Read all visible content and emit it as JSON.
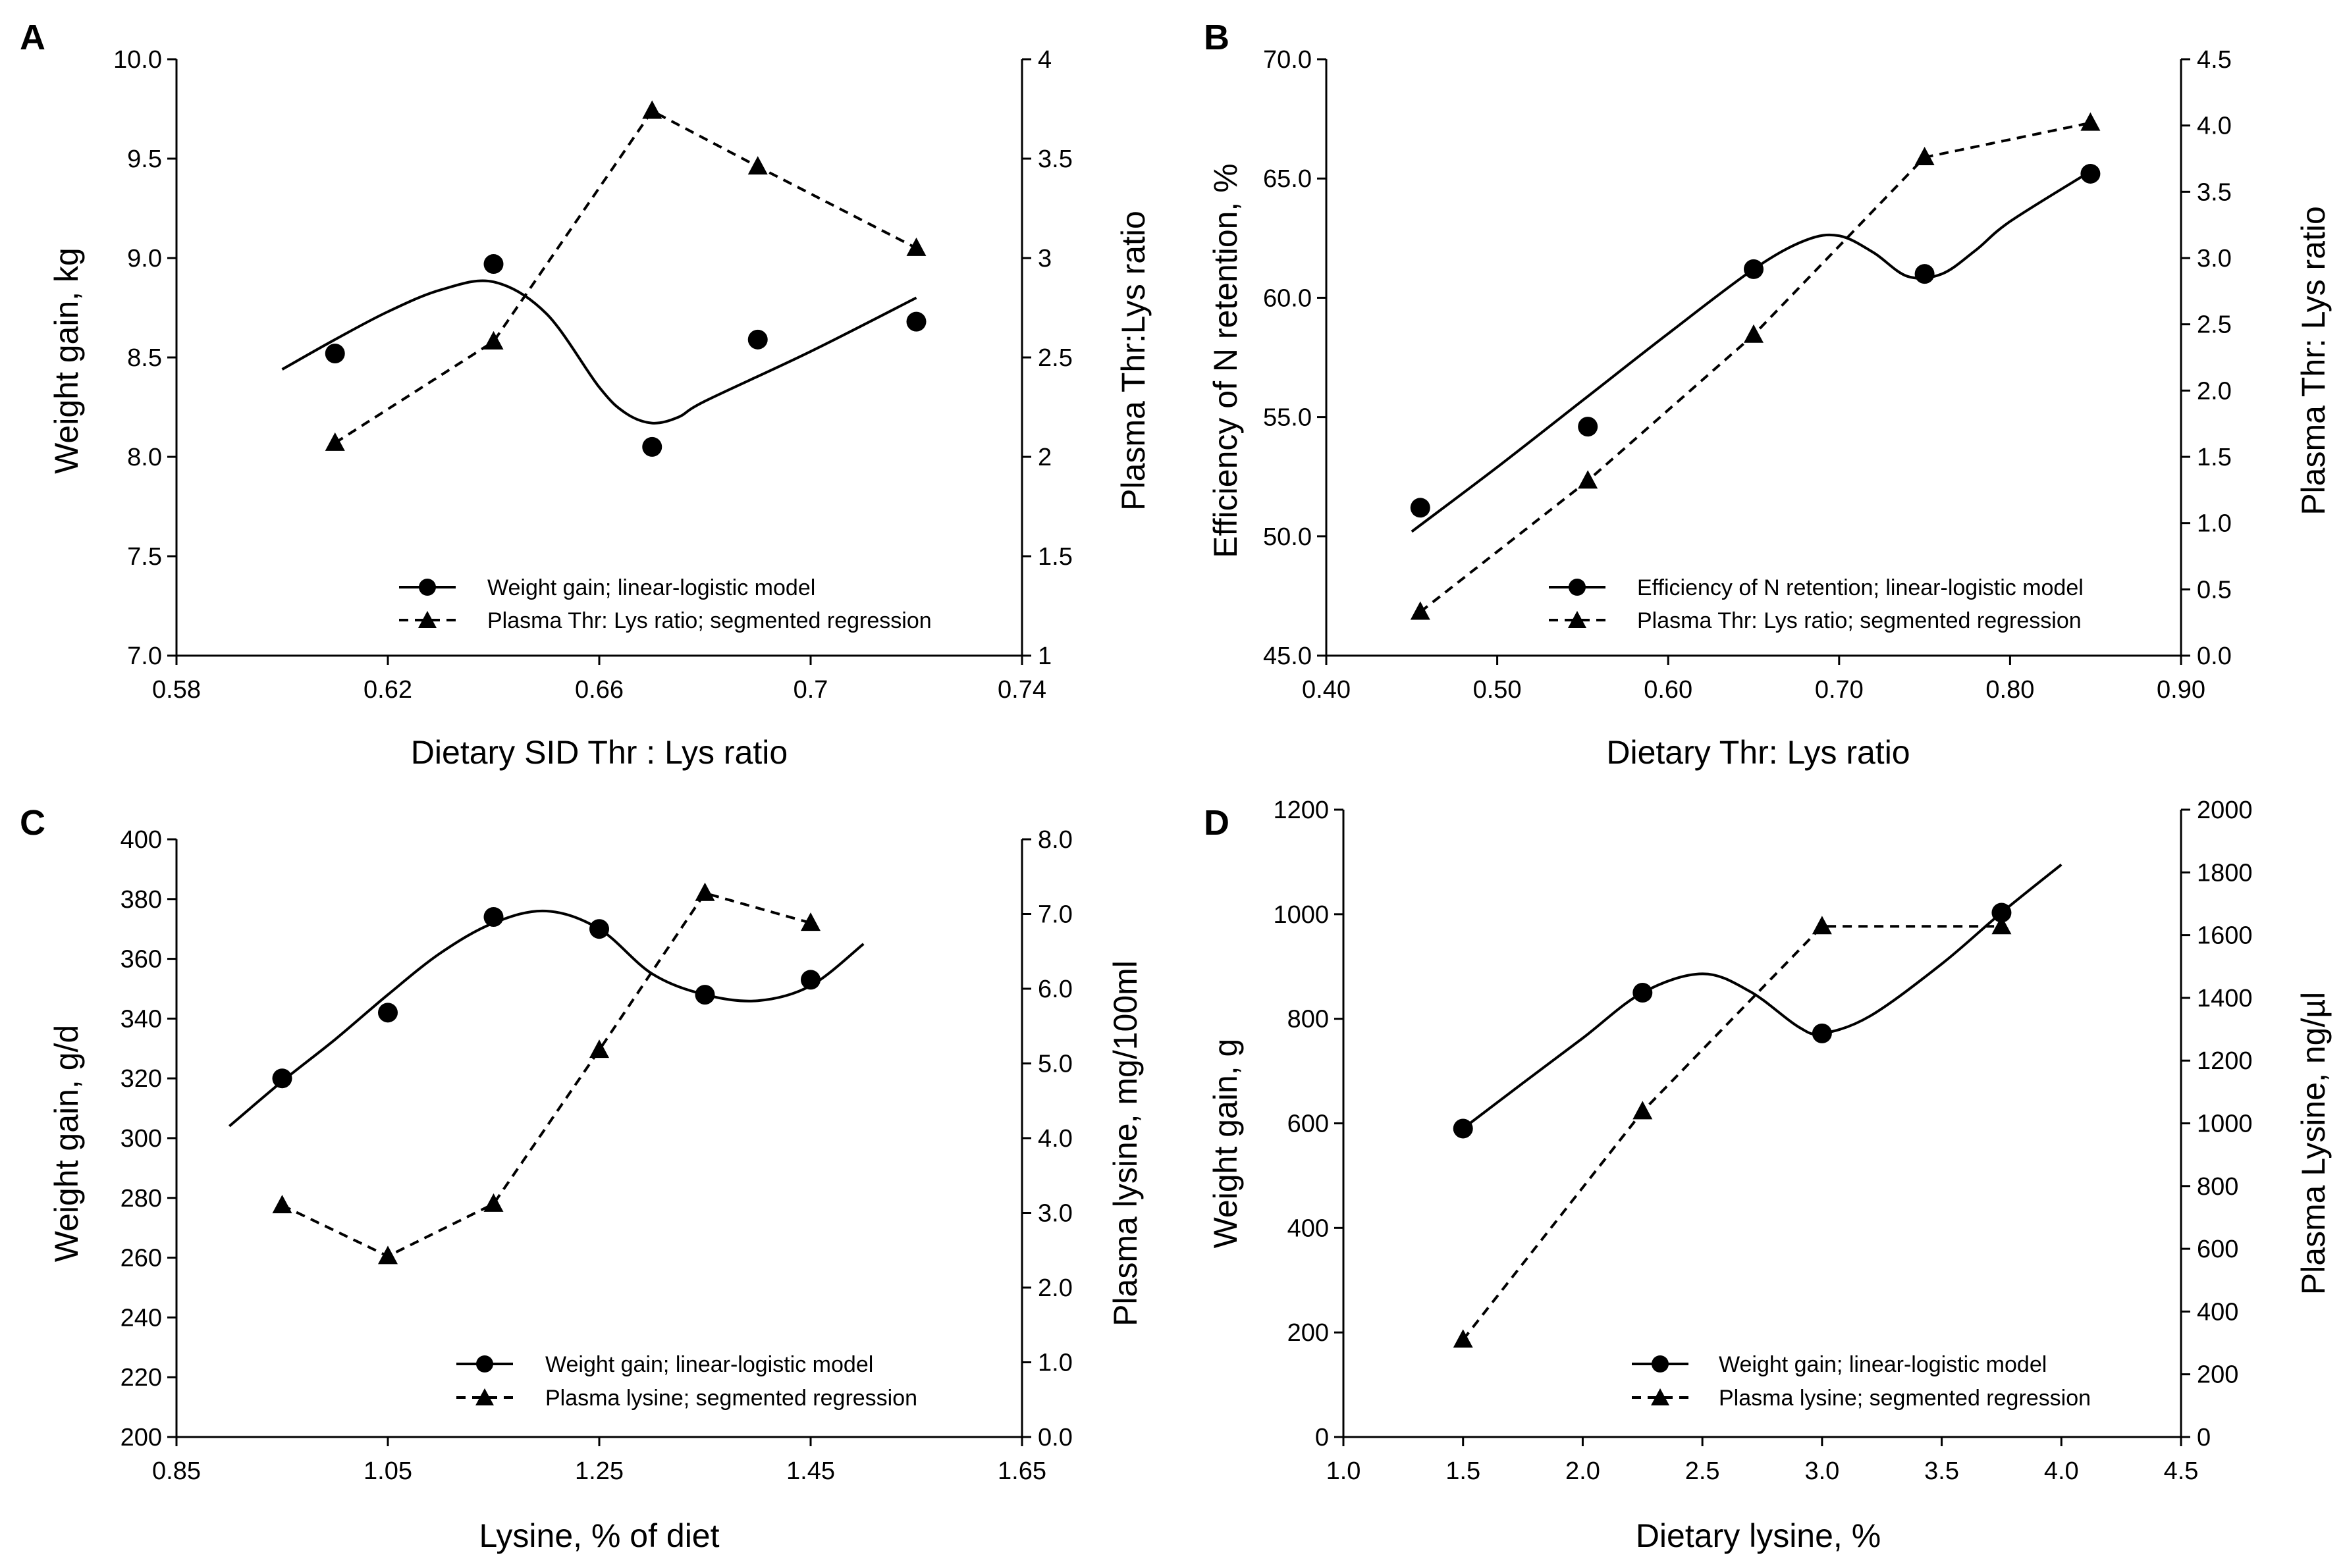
{
  "chart_data": [
    {
      "panel": "A",
      "type": "scatter",
      "x_axis": {
        "label": "Dietary SID Thr : Lys ratio",
        "range": [
          0.58,
          0.74
        ],
        "ticks": [
          "0.58",
          "0.62",
          "0.66",
          "0.7",
          "0.74"
        ]
      },
      "y_left": {
        "label": "Weight gain, kg",
        "range": [
          7.0,
          10.0
        ],
        "ticks": [
          "7.0",
          "7.5",
          "8.0",
          "8.5",
          "9.0",
          "9.5",
          "10.0"
        ]
      },
      "y_right": {
        "label": "Plasma Thr:Lys ratio",
        "range": [
          1,
          4
        ],
        "ticks": [
          "1",
          "1.5",
          "2",
          "2.5",
          "3",
          "3.5",
          "4"
        ]
      },
      "series": [
        {
          "name": "Weight gain; linear-logistic model",
          "axis": "left",
          "marker": "circle",
          "x": [
            0.61,
            0.64,
            0.67,
            0.69,
            0.72
          ],
          "y": [
            8.52,
            8.97,
            8.05,
            8.59,
            8.68
          ]
        },
        {
          "name": "Plasma Thr: Lys ratio; segmented regression",
          "axis": "right",
          "marker": "triangle",
          "style": "dashed",
          "x": [
            0.61,
            0.64,
            0.67,
            0.69,
            0.72
          ],
          "y": [
            2.07,
            2.58,
            3.74,
            3.46,
            3.05
          ]
        }
      ],
      "fit_curve": {
        "axis": "left",
        "x": [
          0.6,
          0.61,
          0.62,
          0.63,
          0.64,
          0.65,
          0.66,
          0.665,
          0.67,
          0.675,
          0.68,
          0.7,
          0.72
        ],
        "y": [
          8.44,
          8.59,
          8.73,
          8.84,
          8.88,
          8.72,
          8.35,
          8.22,
          8.17,
          8.2,
          8.28,
          8.53,
          8.8
        ]
      },
      "legend_position": "bottom-right"
    },
    {
      "panel": "B",
      "type": "scatter",
      "x_axis": {
        "label": "Dietary Thr: Lys ratio",
        "range": [
          0.4,
          0.9
        ],
        "ticks": [
          "0.40",
          "0.50",
          "0.60",
          "0.70",
          "0.80",
          "0.90"
        ]
      },
      "y_left": {
        "label": "Efficiency of N retention, %",
        "range": [
          45.0,
          70.0
        ],
        "ticks": [
          "45.0",
          "50.0",
          "55.0",
          "60.0",
          "65.0",
          "70.0"
        ]
      },
      "y_right": {
        "label": "Plasma Thr: Lys ratio",
        "range": [
          0.0,
          4.5
        ],
        "ticks": [
          "0.0",
          "0.5",
          "1.0",
          "1.5",
          "2.0",
          "2.5",
          "3.0",
          "3.5",
          "4.0",
          "4.5"
        ]
      },
      "series": [
        {
          "name": "Efficiency of N retention; linear-logistic model",
          "axis": "left",
          "marker": "circle",
          "x": [
            0.455,
            0.553,
            0.65,
            0.75,
            0.847
          ],
          "y": [
            51.2,
            54.6,
            61.2,
            61.0,
            65.2
          ]
        },
        {
          "name": "Plasma Thr: Lys ratio; segmented regression",
          "axis": "right",
          "marker": "triangle",
          "style": "dashed",
          "x": [
            0.455,
            0.553,
            0.65,
            0.75,
            0.847
          ],
          "y": [
            0.33,
            1.32,
            2.42,
            3.76,
            4.02
          ]
        }
      ],
      "fit_curve": {
        "axis": "left",
        "x": [
          0.45,
          0.5,
          0.55,
          0.6,
          0.65,
          0.68,
          0.7,
          0.72,
          0.74,
          0.76,
          0.78,
          0.8,
          0.847
        ],
        "y": [
          50.2,
          52.9,
          55.7,
          58.5,
          61.2,
          62.4,
          62.6,
          61.9,
          60.9,
          61.0,
          62.0,
          63.2,
          65.3
        ]
      },
      "legend_position": "bottom-right"
    },
    {
      "panel": "C",
      "type": "scatter",
      "x_axis": {
        "label": "Lysine, % of diet",
        "range": [
          0.85,
          1.65
        ],
        "ticks": [
          "0.85",
          "1.05",
          "1.25",
          "1.45",
          "1.65"
        ]
      },
      "y_left": {
        "label": "Weight gain, g/d",
        "range": [
          200,
          400
        ],
        "ticks": [
          "200",
          "220",
          "240",
          "260",
          "280",
          "300",
          "320",
          "340",
          "360",
          "380",
          "400"
        ]
      },
      "y_right": {
        "label": "Plasma lysine, mg/100ml",
        "range": [
          0.0,
          8.0
        ],
        "ticks": [
          "0.0",
          "1.0",
          "2.0",
          "3.0",
          "4.0",
          "5.0",
          "6.0",
          "7.0",
          "8.0"
        ]
      },
      "series": [
        {
          "name": "Weight gain; linear-logistic model",
          "axis": "left",
          "marker": "circle",
          "x": [
            0.95,
            1.05,
            1.15,
            1.25,
            1.35,
            1.45
          ],
          "y": [
            320,
            342,
            374,
            370,
            348,
            353
          ]
        },
        {
          "name": "Plasma lysine; segmented regression",
          "axis": "right",
          "marker": "triangle",
          "style": "dashed",
          "x": [
            0.95,
            1.05,
            1.15,
            1.25,
            1.35,
            1.45
          ],
          "y": [
            3.1,
            2.42,
            3.12,
            5.18,
            7.28,
            6.88
          ]
        }
      ],
      "fit_curve": {
        "axis": "left",
        "x": [
          0.9,
          0.95,
          1.0,
          1.05,
          1.1,
          1.15,
          1.2,
          1.25,
          1.3,
          1.35,
          1.4,
          1.45,
          1.5
        ],
        "y": [
          304,
          319,
          333,
          348,
          362,
          372,
          376,
          370,
          355,
          348,
          346,
          351,
          365
        ]
      },
      "legend_position": "bottom-right"
    },
    {
      "panel": "D",
      "type": "scatter",
      "x_axis": {
        "label": "Dietary lysine, %",
        "range": [
          1.0,
          4.5
        ],
        "ticks": [
          "1.0",
          "1.5",
          "2.0",
          "2.5",
          "3.0",
          "3.5",
          "4.0",
          "4.5"
        ]
      },
      "y_left": {
        "label": "Weight gain, g",
        "range": [
          0,
          1200
        ],
        "ticks": [
          "0",
          "200",
          "400",
          "600",
          "800",
          "1000",
          "1200"
        ]
      },
      "y_right": {
        "label": "Plasma Lysine, ng/µl",
        "range": [
          0,
          2000
        ],
        "ticks": [
          "0",
          "200",
          "400",
          "600",
          "800",
          "1000",
          "1200",
          "1400",
          "1600",
          "1800",
          "2000"
        ]
      },
      "series": [
        {
          "name": "Weight gain; linear-logistic model",
          "axis": "left",
          "marker": "circle",
          "x": [
            1.5,
            2.25,
            3.0,
            3.75
          ],
          "y": [
            590,
            850,
            772,
            1003
          ]
        },
        {
          "name": "Plasma lysine; segmented regression",
          "axis": "right",
          "marker": "triangle",
          "style": "dashed",
          "x": [
            1.5,
            2.25,
            3.0,
            3.75
          ],
          "y": [
            310,
            1038,
            1628,
            1628
          ]
        }
      ],
      "fit_curve": {
        "axis": "left",
        "x": [
          1.5,
          1.75,
          2.0,
          2.25,
          2.5,
          2.7,
          2.9,
          3.0,
          3.2,
          3.5,
          3.75,
          4.0
        ],
        "y": [
          590,
          677,
          763,
          850,
          886,
          852,
          785,
          772,
          805,
          905,
          1003,
          1095
        ]
      },
      "legend_position": "bottom-right"
    }
  ]
}
